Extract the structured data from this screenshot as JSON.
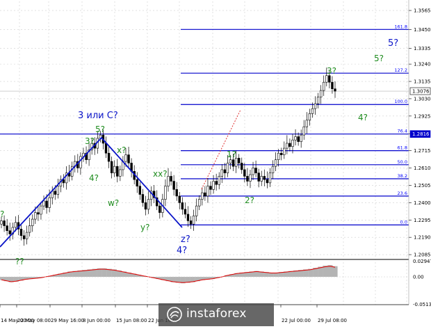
{
  "chart_data": {
    "type": "candlestick",
    "instrument_price_current": "1.3076",
    "price_labels": [
      "1.3565",
      "1.3450",
      "1.3335",
      "1.3240",
      "1.3135",
      "1.3030",
      "1.2925",
      "1.2816",
      "1.2715",
      "1.2610",
      "1.2505",
      "1.2400",
      "1.2295",
      "1.2190",
      "1.2085"
    ],
    "current_price_box": "1.3076",
    "line_price_box": "1.2816",
    "time_labels": [
      "14 May 00:00",
      "22 May 08:00",
      "29 May 16:00",
      "8 Jun 00:00",
      "15 Jun 08:00",
      "22 Jun 16:00",
      "",
      "22 Jul 00:00",
      "29 Jul 08:00"
    ],
    "fib_levels": [
      {
        "label": "161.8",
        "price": 1.345
      },
      {
        "label": "127.2",
        "price": 1.3185
      },
      {
        "label": "100.0",
        "price": 1.2995
      },
      {
        "label": "76.4",
        "price": 1.2816
      },
      {
        "label": "61.8",
        "price": 1.2715
      },
      {
        "label": "50.0",
        "price": 1.263
      },
      {
        "label": "38.2",
        "price": 1.2545
      },
      {
        "label": "23.6",
        "price": 1.244
      },
      {
        "label": "0.0",
        "price": 1.2265
      }
    ],
    "wave_labels_green": [
      "?",
      "5?",
      "3?",
      "4?",
      "x?",
      "w?",
      "xx?",
      "y?",
      "1?",
      "2?",
      "3?",
      "4?",
      "5?",
      "??"
    ],
    "wave_labels_blue": [
      "3 или C?",
      "z?",
      "4?",
      "5?"
    ],
    "close_series": [
      1.229,
      1.226,
      1.223,
      1.221,
      1.225,
      1.228,
      1.224,
      1.22,
      1.218,
      1.222,
      1.226,
      1.23,
      1.234,
      1.233,
      1.238,
      1.241,
      1.237,
      1.243,
      1.247,
      1.245,
      1.25,
      1.254,
      1.252,
      1.258,
      1.256,
      1.262,
      1.265,
      1.261,
      1.268,
      1.27,
      1.266,
      1.272,
      1.276,
      1.273,
      1.279,
      1.281,
      1.276,
      1.27,
      1.265,
      1.258,
      1.262,
      1.256,
      1.26,
      1.265,
      1.269,
      1.264,
      1.259,
      1.254,
      1.25,
      1.245,
      1.24,
      1.236,
      1.242,
      1.247,
      1.243,
      1.238,
      1.234,
      1.242,
      1.25,
      1.256,
      1.253,
      1.248,
      1.244,
      1.24,
      1.236,
      1.233,
      1.229,
      1.227,
      1.232,
      1.238,
      1.242,
      1.246,
      1.244,
      1.25,
      1.248,
      1.253,
      1.251,
      1.256,
      1.26,
      1.258,
      1.264,
      1.266,
      1.262,
      1.267,
      1.264,
      1.26,
      1.256,
      1.253,
      1.257,
      1.261,
      1.258,
      1.253,
      1.256,
      1.254,
      1.252,
      1.258,
      1.262,
      1.266,
      1.27,
      1.269,
      1.273,
      1.276,
      1.274,
      1.278,
      1.28,
      1.277,
      1.281,
      1.286,
      1.29,
      1.294,
      1.297,
      1.3,
      1.304,
      1.308,
      1.313,
      1.317,
      1.313,
      1.309,
      1.3076
    ],
    "oscillator_labels": [
      "0.02947",
      "0.00",
      "-0.05133"
    ],
    "oscillator_values": [
      -0.006,
      -0.008,
      -0.01,
      -0.009,
      -0.007,
      -0.005,
      -0.004,
      -0.003,
      -0.002,
      0.0,
      0.002,
      0.004,
      0.006,
      0.008,
      0.01,
      0.011,
      0.012,
      0.013,
      0.014,
      0.015,
      0.016,
      0.016,
      0.015,
      0.014,
      0.012,
      0.01,
      0.008,
      0.006,
      0.004,
      0.002,
      0.0,
      -0.002,
      -0.004,
      -0.006,
      -0.008,
      -0.01,
      -0.011,
      -0.012,
      -0.011,
      -0.01,
      -0.008,
      -0.006,
      -0.005,
      -0.004,
      -0.002,
      0.0,
      0.003,
      0.005,
      0.007,
      0.008,
      0.009,
      0.01,
      0.011,
      0.01,
      0.009,
      0.008,
      0.008,
      0.009,
      0.01,
      0.011,
      0.012,
      0.013,
      0.014,
      0.015,
      0.017,
      0.019,
      0.021,
      0.022,
      0.02
    ]
  },
  "watermark": {
    "brand": "instaforex"
  }
}
